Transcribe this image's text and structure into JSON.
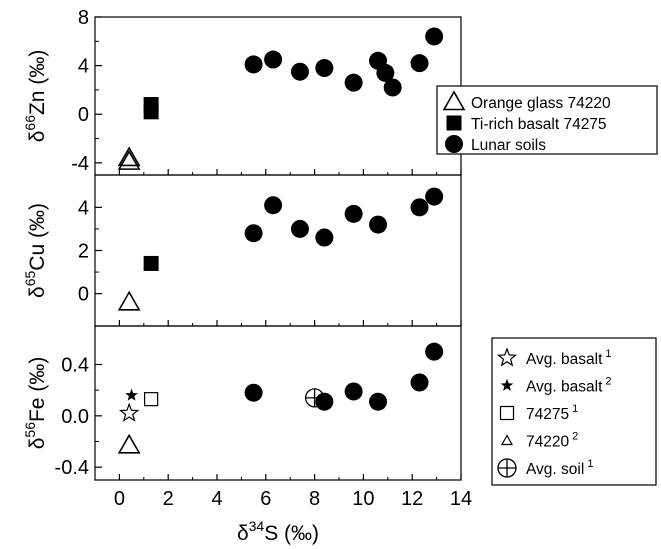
{
  "chart_data": {
    "type": "scatter",
    "x_axis": {
      "label_main": "δ",
      "label_sup": "34",
      "label_rest": "S (‰)",
      "xlim": [
        -1,
        14
      ],
      "ticks": [
        0,
        2,
        4,
        6,
        8,
        10,
        12,
        14
      ],
      "tick_labels": [
        "0",
        "2",
        "4",
        "6",
        "8",
        "10",
        "12",
        "14"
      ]
    },
    "panels": [
      {
        "id": "zn",
        "ylabel_main": "δ",
        "ylabel_sup": "66",
        "ylabel_rest": "Zn (‰)",
        "ylim": [
          -5,
          8
        ],
        "ticks": [
          -4,
          0,
          4,
          8
        ],
        "tick_labels": [
          "-4",
          "0",
          "4",
          "8"
        ],
        "series": [
          {
            "name": "Orange glass 74220",
            "marker": "triangle-open",
            "points": [
              [
                0.4,
                -3.6
              ],
              [
                0.4,
                -3.9
              ]
            ]
          },
          {
            "name": "Ti-rich basalt 74275",
            "marker": "square-filled",
            "points": [
              [
                1.3,
                0.8
              ],
              [
                1.3,
                0.2
              ]
            ]
          },
          {
            "name": "Lunar soils",
            "marker": "circle-filled",
            "points": [
              [
                5.5,
                4.1
              ],
              [
                6.3,
                4.5
              ],
              [
                7.4,
                3.5
              ],
              [
                8.4,
                3.8
              ],
              [
                9.6,
                2.6
              ],
              [
                10.6,
                4.4
              ],
              [
                10.9,
                3.4
              ],
              [
                11.2,
                2.2
              ],
              [
                12.3,
                4.2
              ],
              [
                12.9,
                6.4
              ]
            ]
          }
        ],
        "legend": [
          "Orange glass 74220",
          "Ti-rich basalt 74275",
          "Lunar soils"
        ]
      },
      {
        "id": "cu",
        "ylabel_main": "δ",
        "ylabel_sup": "65",
        "ylabel_rest": "Cu (‰)",
        "ylim": [
          -1.5,
          5.5
        ],
        "ticks": [
          0,
          2,
          4
        ],
        "tick_labels": [
          "0",
          "2",
          "4"
        ],
        "series": [
          {
            "name": "Orange glass 74220",
            "marker": "triangle-open",
            "points": [
              [
                0.4,
                -0.4
              ]
            ]
          },
          {
            "name": "Ti-rich basalt 74275",
            "marker": "square-filled",
            "points": [
              [
                1.3,
                1.4
              ]
            ]
          },
          {
            "name": "Lunar soils",
            "marker": "circle-filled",
            "points": [
              [
                5.5,
                2.8
              ],
              [
                6.3,
                4.1
              ],
              [
                7.4,
                3.0
              ],
              [
                8.4,
                2.6
              ],
              [
                9.6,
                3.7
              ],
              [
                10.6,
                3.2
              ],
              [
                12.3,
                4.0
              ],
              [
                12.9,
                4.5
              ]
            ]
          }
        ]
      },
      {
        "id": "fe",
        "ylabel_main": "δ",
        "ylabel_sup": "56",
        "ylabel_rest": "Fe (‰)",
        "ylim": [
          -0.5,
          0.7
        ],
        "ticks": [
          -0.4,
          0.0,
          0.4
        ],
        "tick_labels": [
          "-0.4",
          "0.0",
          "0.4"
        ],
        "series": [
          {
            "name": "Avg. basalt 1",
            "marker": "star-open",
            "points": [
              [
                0.4,
                0.02
              ]
            ]
          },
          {
            "name": "Avg. basalt 2",
            "marker": "star-filled",
            "points": [
              [
                0.5,
                0.16
              ]
            ]
          },
          {
            "name": "74275 1",
            "marker": "square-open",
            "points": [
              [
                1.3,
                0.13
              ]
            ]
          },
          {
            "name": "74220 2",
            "marker": "triangle-open-large",
            "points": [
              [
                0.4,
                -0.23
              ]
            ]
          },
          {
            "name": "Avg. soil 1",
            "marker": "circle-cross",
            "points": [
              [
                8.0,
                0.14
              ]
            ]
          },
          {
            "name": "Lunar soils",
            "marker": "circle-filled",
            "points": [
              [
                5.5,
                0.18
              ],
              [
                8.4,
                0.11
              ],
              [
                9.6,
                0.19
              ],
              [
                10.6,
                0.11
              ],
              [
                12.3,
                0.26
              ],
              [
                12.9,
                0.5
              ]
            ]
          }
        ],
        "legend": [
          {
            "marker": "star-open",
            "text": "Avg. basalt",
            "sup": "1"
          },
          {
            "marker": "star-filled",
            "text": "Avg. basalt",
            "sup": "2"
          },
          {
            "marker": "square-open",
            "text": "74275",
            "sup": "1"
          },
          {
            "marker": "triangle-open-small",
            "text": "74220",
            "sup": "2"
          },
          {
            "marker": "circle-cross",
            "text": "Avg. soil",
            "sup": "1"
          }
        ]
      }
    ]
  }
}
